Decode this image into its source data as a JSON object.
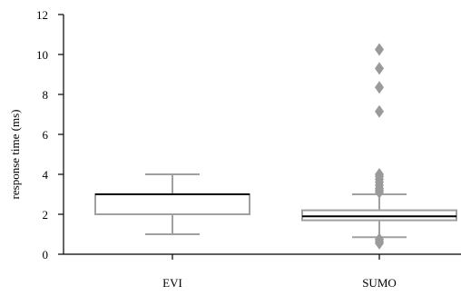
{
  "chart_data": {
    "type": "box",
    "title": "",
    "xlabel": "",
    "ylabel": "response time (ms)",
    "ylim": [
      0,
      12
    ],
    "yticks": [
      0,
      2,
      4,
      6,
      8,
      10,
      12
    ],
    "categories": [
      "EVI",
      "SUMO"
    ],
    "grid": false,
    "boxes": [
      {
        "category": "EVI",
        "whisker_low": 1.0,
        "q1": 2.0,
        "median": 3.0,
        "q3": 3.0,
        "whisker_high": 4.0,
        "outliers": []
      },
      {
        "category": "SUMO",
        "whisker_low": 0.85,
        "q1": 1.7,
        "median": 1.9,
        "q3": 2.2,
        "whisker_high": 3.0,
        "outliers": [
          0.55,
          0.65,
          0.75,
          3.1,
          3.2,
          3.3,
          3.45,
          3.6,
          3.75,
          3.9,
          4.0,
          7.15,
          8.35,
          9.3,
          10.25
        ]
      }
    ],
    "colors": {
      "box": "#a0a0a0",
      "median": "#000000",
      "outlier": "#9a9a9a",
      "axis": "#000000"
    }
  }
}
